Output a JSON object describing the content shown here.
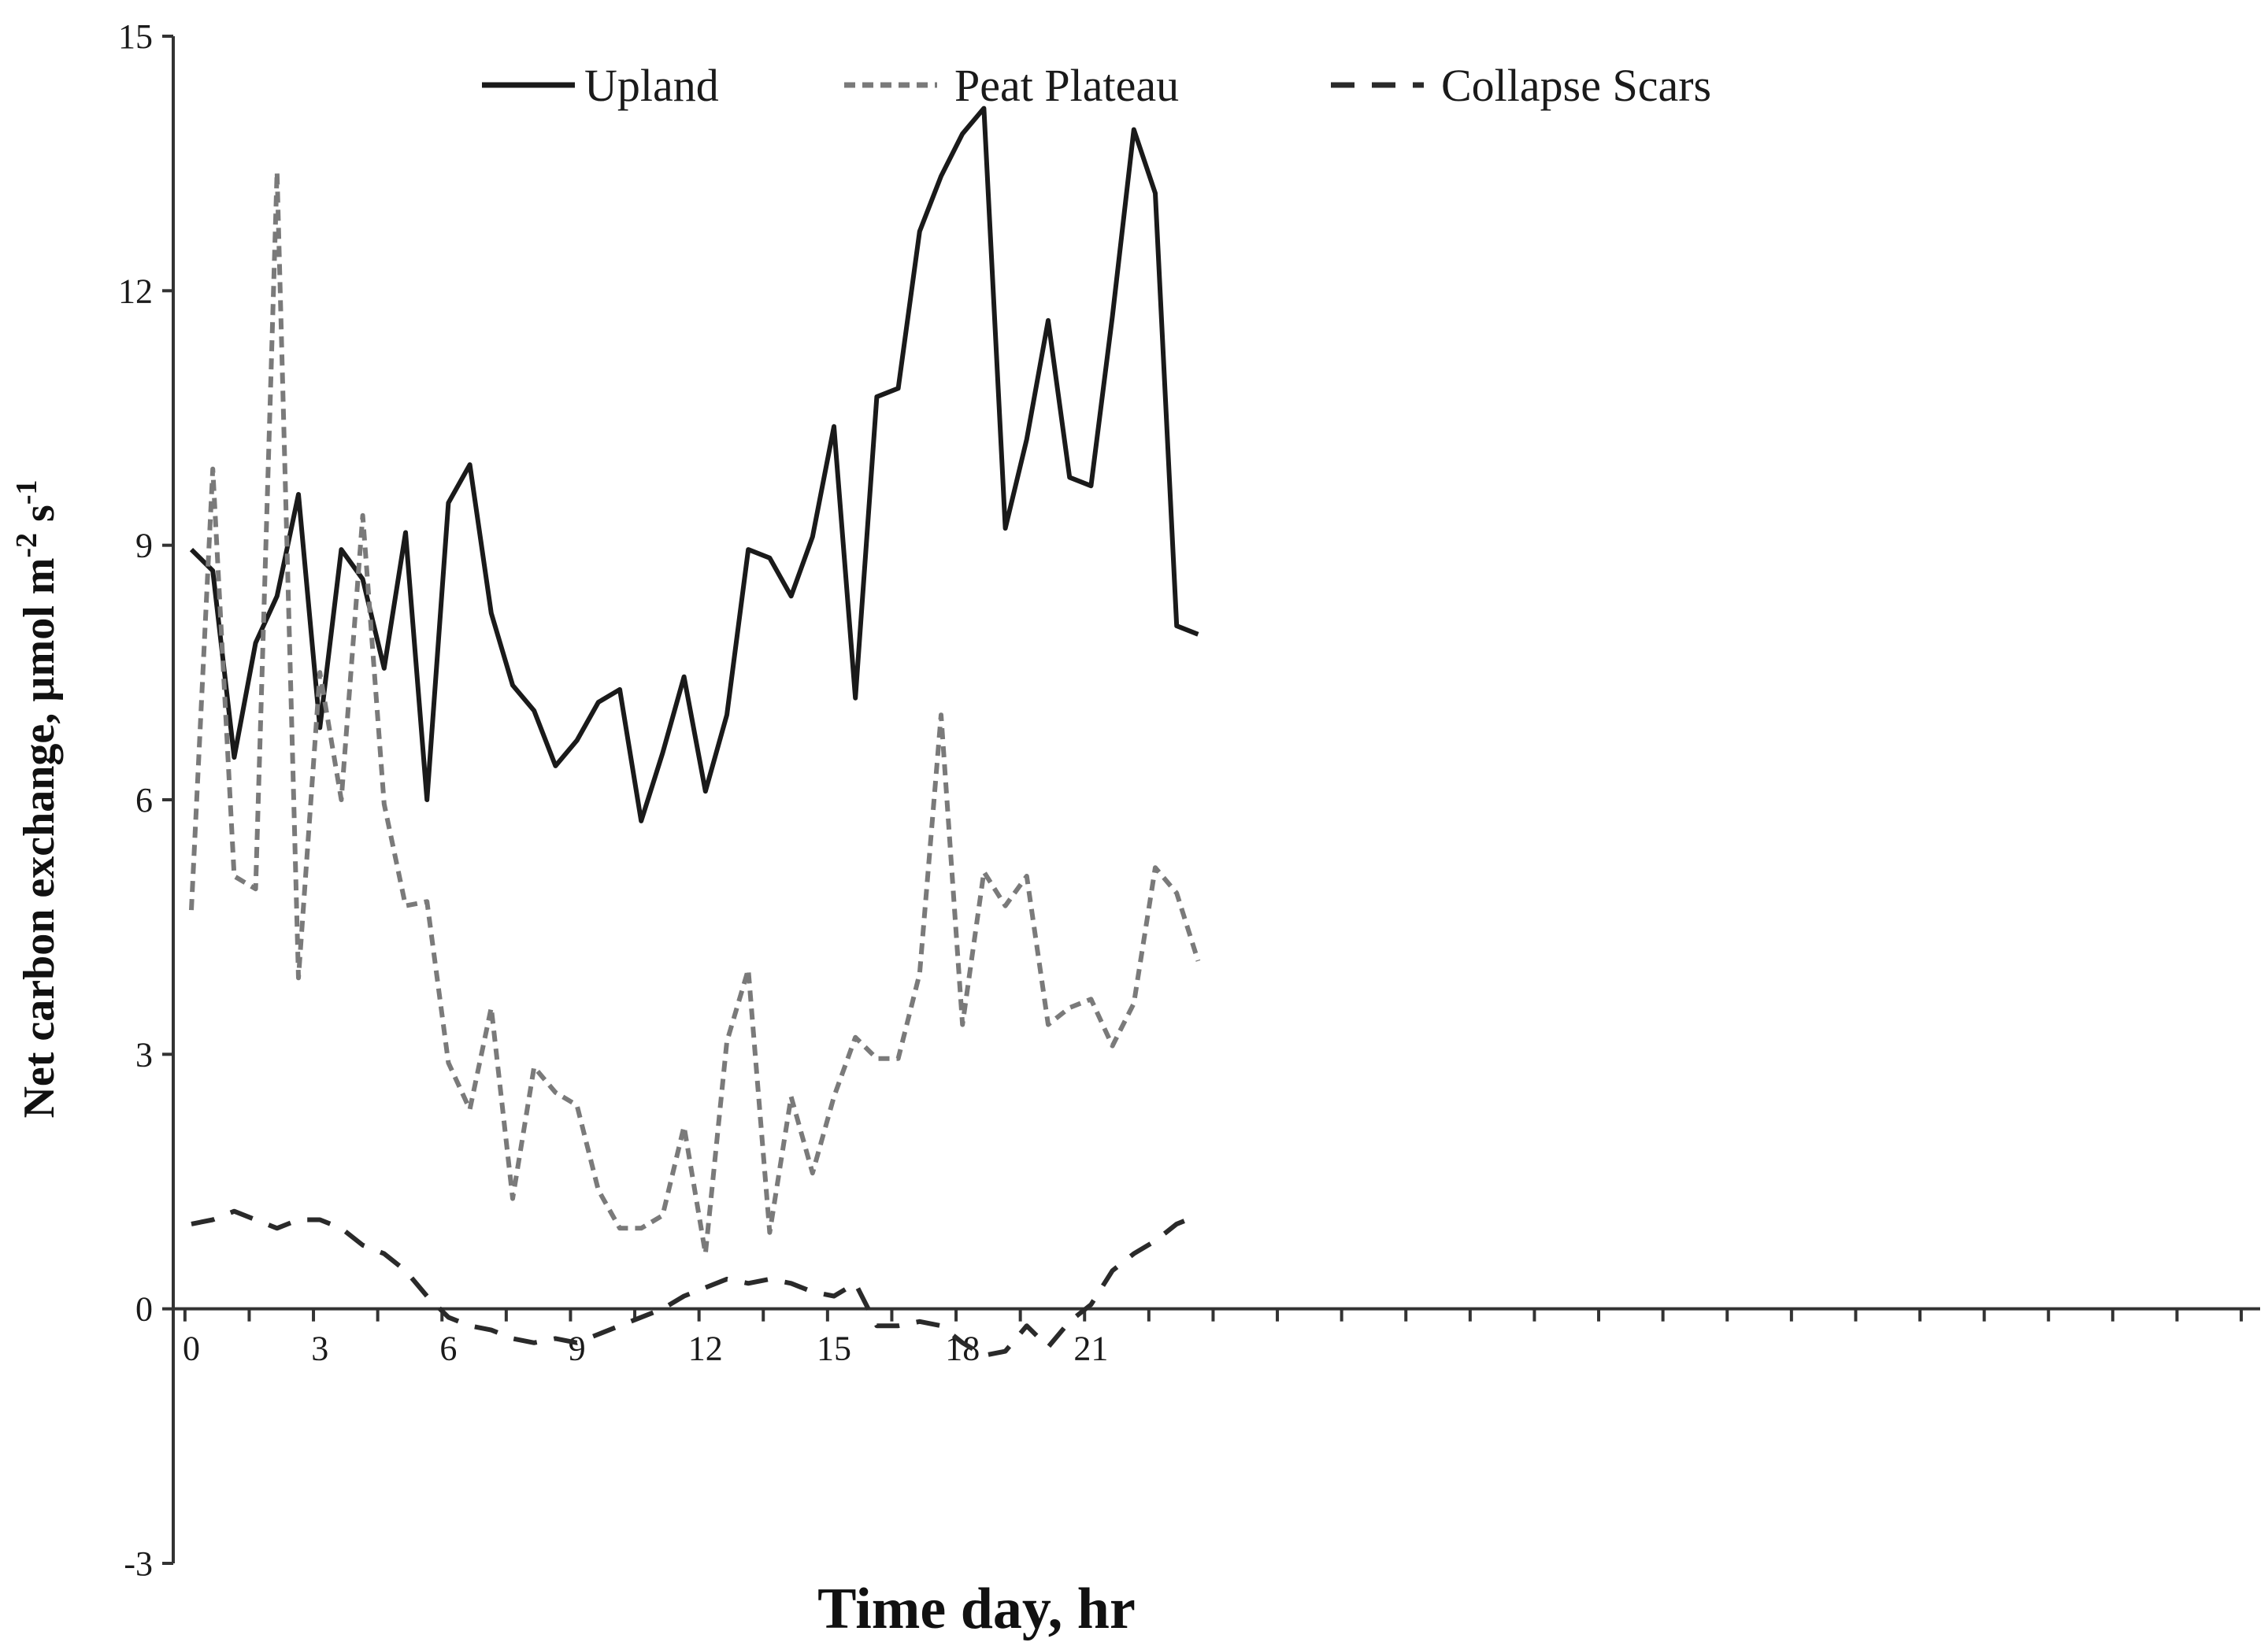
{
  "chart_data": {
    "type": "line",
    "xlabel": "Time day, hr",
    "ylabel_main": "Net carbon exchange, µmol m",
    "ylabel_sup1": "-2",
    "ylabel_mid": " s",
    "ylabel_sup2": "-1",
    "ylim": [
      -3,
      15
    ],
    "yticks": [
      -3,
      0,
      3,
      6,
      9,
      12,
      15
    ],
    "xlim": [
      -0.2,
      23.7
    ],
    "xticks": [
      0,
      3,
      6,
      9,
      12,
      15,
      18,
      21
    ],
    "grid": false,
    "legend_position": "top",
    "x": [
      0,
      0.5,
      1,
      1.5,
      2,
      2.5,
      3,
      3.5,
      4,
      4.5,
      5,
      5.5,
      6,
      6.5,
      7,
      7.5,
      8,
      8.5,
      9,
      9.5,
      10,
      10.5,
      11,
      11.5,
      12,
      12.5,
      13,
      13.5,
      14,
      14.5,
      15,
      15.5,
      16,
      16.5,
      17,
      17.5,
      18,
      18.5,
      19,
      19.5,
      20,
      20.5,
      21,
      21.5,
      22,
      22.5,
      23,
      23.5
    ],
    "series": [
      {
        "name": "Upland",
        "color": "#1a1a1a",
        "style": "solid",
        "values": [
          8.95,
          8.7,
          6.5,
          7.85,
          8.4,
          9.6,
          6.85,
          8.95,
          8.6,
          7.55,
          9.15,
          6.0,
          9.5,
          9.95,
          8.2,
          7.35,
          7.05,
          6.4,
          6.7,
          7.15,
          7.3,
          5.75,
          6.55,
          7.45,
          6.1,
          7.0,
          8.95,
          8.85,
          8.4,
          9.1,
          10.4,
          7.2,
          10.75,
          10.85,
          12.7,
          13.35,
          13.85,
          14.15,
          9.2,
          10.25,
          11.65,
          9.8,
          9.7,
          11.7,
          13.9,
          13.15,
          8.05,
          7.95
        ]
      },
      {
        "name": "Peat Plateau",
        "color": "#7a7a7a",
        "style": "dotted",
        "values": [
          4.7,
          9.9,
          5.1,
          4.95,
          13.4,
          3.9,
          7.5,
          6.0,
          9.35,
          5.95,
          4.75,
          4.8,
          2.9,
          2.35,
          3.55,
          1.3,
          2.85,
          2.55,
          2.4,
          1.4,
          0.95,
          0.95,
          1.1,
          2.15,
          0.65,
          3.15,
          4.0,
          0.9,
          2.5,
          1.6,
          2.5,
          3.2,
          2.95,
          2.95,
          3.95,
          7.0,
          3.35,
          5.15,
          4.75,
          5.1,
          3.35,
          3.55,
          3.65,
          3.1,
          3.6,
          5.2,
          4.9,
          4.1
        ]
      },
      {
        "name": "Collapse Scars",
        "color": "#2a2a2a",
        "style": "dashed",
        "values": [
          1.0,
          1.05,
          1.15,
          1.05,
          0.95,
          1.05,
          1.05,
          0.95,
          0.75,
          0.65,
          0.45,
          0.15,
          -0.1,
          -0.2,
          -0.25,
          -0.35,
          -0.4,
          -0.35,
          -0.4,
          -0.3,
          -0.2,
          -0.1,
          0.0,
          0.15,
          0.25,
          0.35,
          0.3,
          0.35,
          0.3,
          0.2,
          0.15,
          0.3,
          -0.2,
          -0.2,
          -0.15,
          -0.2,
          -0.4,
          -0.55,
          -0.5,
          -0.2,
          -0.45,
          -0.15,
          0.05,
          0.45,
          0.65,
          0.8,
          1.0,
          1.1
        ]
      }
    ]
  }
}
